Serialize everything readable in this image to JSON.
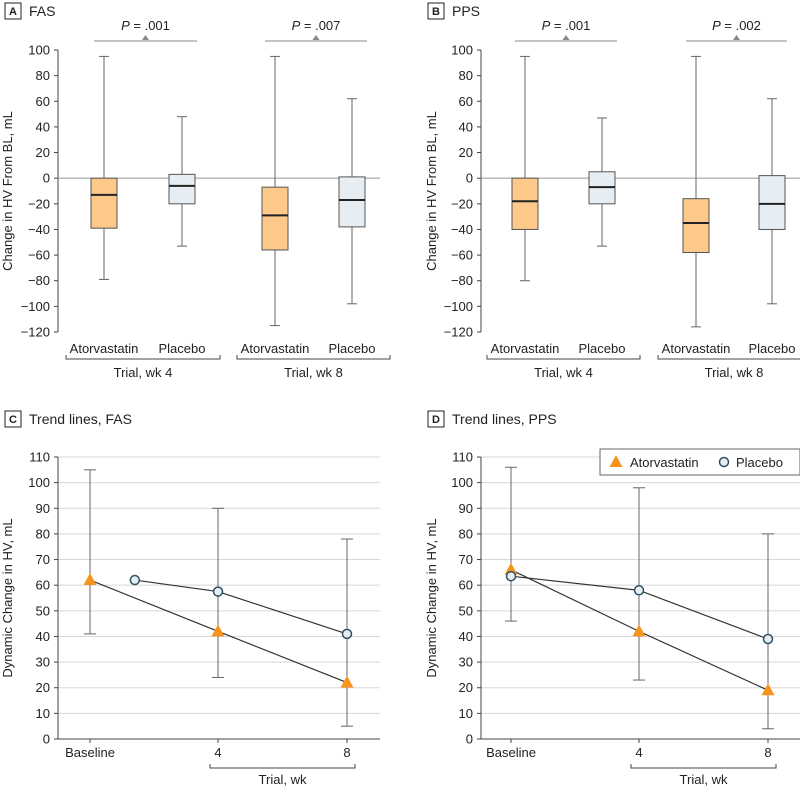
{
  "chart_data": [
    {
      "type": "box",
      "panel": "A",
      "title": "FAS",
      "ylabel": "Change in HV From BL, mL",
      "ylim": [
        -120,
        100
      ],
      "yticks": [
        100,
        80,
        60,
        40,
        20,
        0,
        -20,
        -40,
        -60,
        -80,
        -100,
        -120
      ],
      "groups": [
        "Trial, wk 4",
        "Trial, wk 8"
      ],
      "categories": [
        "Atorvastatin",
        "Placebo",
        "Atorvastatin",
        "Placebo"
      ],
      "boxes": [
        {
          "min": -79,
          "q1": -39,
          "median": -13,
          "q3": 0,
          "max": 95
        },
        {
          "min": -53,
          "q1": -20,
          "median": -6,
          "q3": 3,
          "max": 48
        },
        {
          "min": -115,
          "q1": -56,
          "median": -29,
          "q3": -7,
          "max": 95
        },
        {
          "min": -98,
          "q1": -38,
          "median": -17,
          "q3": 1,
          "max": 62
        }
      ],
      "p_values": [
        "P = .001",
        "P = .007"
      ]
    },
    {
      "type": "box",
      "panel": "B",
      "title": "PPS",
      "ylabel": "Change in HV From BL, mL",
      "ylim": [
        -120,
        100
      ],
      "yticks": [
        100,
        80,
        60,
        40,
        20,
        0,
        -20,
        -40,
        -60,
        -80,
        -100,
        -120
      ],
      "groups": [
        "Trial, wk 4",
        "Trial, wk 8"
      ],
      "categories": [
        "Atorvastatin",
        "Placebo",
        "Atorvastatin",
        "Placebo"
      ],
      "boxes": [
        {
          "min": -80,
          "q1": -40,
          "median": -18,
          "q3": 0,
          "max": 95
        },
        {
          "min": -53,
          "q1": -20,
          "median": -7,
          "q3": 5,
          "max": 47
        },
        {
          "min": -116,
          "q1": -58,
          "median": -35,
          "q3": -16,
          "max": 95
        },
        {
          "min": -98,
          "q1": -40,
          "median": -20,
          "q3": 2,
          "max": 62
        }
      ],
      "p_values": [
        "P = .001",
        "P = .002"
      ]
    },
    {
      "type": "line",
      "panel": "C",
      "title": "Trend lines, FAS",
      "ylabel": "Dynamic Change in HV, mL",
      "ylim": [
        0,
        110
      ],
      "yticks": [
        0,
        10,
        20,
        30,
        40,
        50,
        60,
        70,
        80,
        90,
        100,
        110
      ],
      "x": [
        "Baseline",
        "4",
        "8"
      ],
      "xgroup_label": "Trial, wk",
      "errorbars": [
        {
          "x": "Baseline",
          "low": 41,
          "high": 105
        },
        {
          "x": "4",
          "low": 24,
          "high": 90
        },
        {
          "x": "8",
          "low": 5,
          "high": 78
        }
      ],
      "series": [
        {
          "name": "Atorvastatin",
          "values": [
            62,
            42,
            22
          ]
        },
        {
          "name": "Placebo",
          "values": [
            62,
            57.5,
            41
          ],
          "baseline_x": 0.35
        }
      ]
    },
    {
      "type": "line",
      "panel": "D",
      "title": "Trend lines, PPS",
      "ylabel": "Dynamic Change in HV, mL",
      "ylim": [
        0,
        110
      ],
      "yticks": [
        0,
        10,
        20,
        30,
        40,
        50,
        60,
        70,
        80,
        90,
        100,
        110
      ],
      "x": [
        "Baseline",
        "4",
        "8"
      ],
      "xgroup_label": "Trial, wk",
      "legend_position": "top-right",
      "errorbars": [
        {
          "x": "Baseline",
          "low": 46,
          "high": 106
        },
        {
          "x": "4",
          "low": 23,
          "high": 98
        },
        {
          "x": "8",
          "low": 4,
          "high": 80
        }
      ],
      "series": [
        {
          "name": "Atorvastatin",
          "values": [
            66,
            42,
            19
          ]
        },
        {
          "name": "Placebo",
          "values": [
            63.5,
            58,
            39
          ]
        }
      ]
    }
  ],
  "colors": {
    "box_atorvastatin": "#fcc98b",
    "box_placebo": "#e6eef3",
    "triangle": "#f7941d",
    "circle_fill": "#e6eef3",
    "circle_stroke": "#2f4f63",
    "line": "#333333",
    "grid": "#d8d8d8",
    "bracket": "#8a8a8a"
  }
}
